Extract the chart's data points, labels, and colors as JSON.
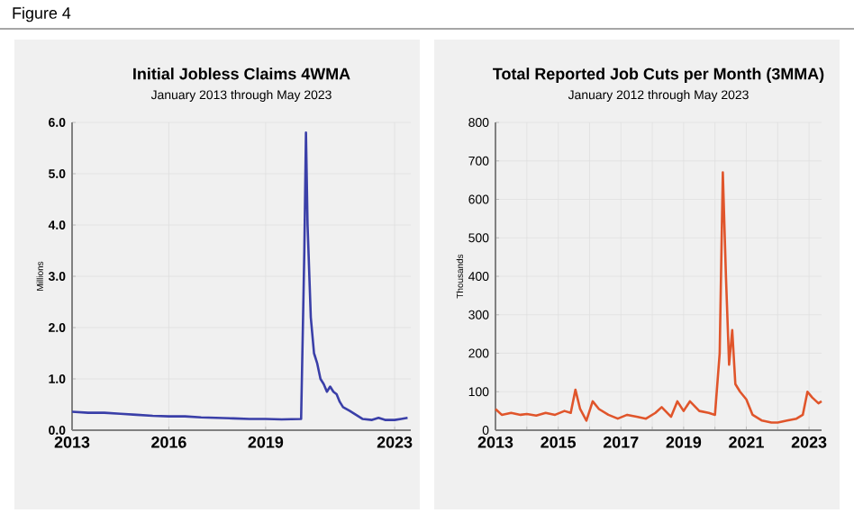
{
  "chart_data": [
    {
      "type": "line",
      "title": "Initial Jobless Claims 4WMA",
      "subtitle": "January 2013 through May 2023",
      "ylabel": "Millions",
      "annotations": [
        "Figure 4"
      ],
      "x": [
        2013.0,
        2013.5,
        2014.0,
        2014.5,
        2015.0,
        2015.5,
        2016.0,
        2016.5,
        2017.0,
        2017.5,
        2018.0,
        2018.5,
        2019.0,
        2019.5,
        2020.1,
        2020.2,
        2020.25,
        2020.3,
        2020.4,
        2020.5,
        2020.6,
        2020.7,
        2020.8,
        2020.9,
        2021.0,
        2021.1,
        2021.2,
        2021.3,
        2021.4,
        2021.6,
        2021.8,
        2022.0,
        2022.3,
        2022.5,
        2022.7,
        2023.0,
        2023.2,
        2023.4
      ],
      "series": [
        {
          "color": "#3a3fa8",
          "values": [
            0.36,
            0.34,
            0.34,
            0.32,
            0.3,
            0.28,
            0.27,
            0.27,
            0.25,
            0.24,
            0.23,
            0.22,
            0.22,
            0.21,
            0.22,
            3.5,
            5.8,
            4.0,
            2.2,
            1.5,
            1.3,
            1.0,
            0.9,
            0.75,
            0.85,
            0.75,
            0.7,
            0.55,
            0.45,
            0.38,
            0.3,
            0.22,
            0.2,
            0.24,
            0.2,
            0.2,
            0.22,
            0.24
          ]
        }
      ],
      "xlim": [
        2013,
        2023.5
      ],
      "xticks": [
        2013,
        2016,
        2019,
        2023
      ],
      "ylim": [
        0,
        6
      ],
      "yticks": [
        {
          "value": 0,
          "label": "0.0"
        },
        {
          "value": 1,
          "label": "1.0"
        },
        {
          "value": 2,
          "label": "2.0"
        },
        {
          "value": 3,
          "label": "3.0"
        },
        {
          "value": 4,
          "label": "4.0"
        },
        {
          "value": 5,
          "label": "5.0"
        },
        {
          "value": 6,
          "label": "6.0"
        }
      ],
      "grid": true
    },
    {
      "type": "line",
      "title": "Total Reported Job Cuts per Month (3MMA)",
      "subtitle": "January 2012 through May 2023",
      "ylabel": "Thousands",
      "x": [
        2013.0,
        2013.2,
        2013.5,
        2013.8,
        2014.0,
        2014.3,
        2014.6,
        2014.9,
        2015.2,
        2015.4,
        2015.55,
        2015.7,
        2015.9,
        2016.1,
        2016.3,
        2016.6,
        2016.9,
        2017.2,
        2017.5,
        2017.8,
        2018.1,
        2018.3,
        2018.6,
        2018.8,
        2019.0,
        2019.2,
        2019.5,
        2019.8,
        2020.0,
        2020.15,
        2020.25,
        2020.35,
        2020.45,
        2020.55,
        2020.65,
        2020.8,
        2021.0,
        2021.2,
        2021.5,
        2021.8,
        2022.0,
        2022.3,
        2022.6,
        2022.8,
        2022.95,
        2023.1,
        2023.3,
        2023.4
      ],
      "series": [
        {
          "color": "#e0552b",
          "values": [
            55,
            40,
            45,
            40,
            42,
            38,
            45,
            40,
            50,
            45,
            105,
            55,
            25,
            75,
            55,
            40,
            30,
            40,
            35,
            30,
            45,
            60,
            35,
            75,
            50,
            75,
            50,
            45,
            40,
            200,
            670,
            400,
            170,
            260,
            120,
            100,
            80,
            40,
            25,
            20,
            20,
            25,
            30,
            40,
            100,
            85,
            70,
            75
          ]
        }
      ],
      "xlim": [
        2013,
        2023.4
      ],
      "xticks": [
        2013,
        {
          "value": 2014,
          "label": null
        },
        2015,
        {
          "value": 2016,
          "label": null
        },
        2017,
        {
          "value": 2018,
          "label": null
        },
        2019,
        {
          "value": 2020,
          "label": null
        },
        2021,
        {
          "value": 2022,
          "label": null
        },
        2023
      ],
      "ylim": [
        0,
        800
      ],
      "yticks": [
        0,
        100,
        200,
        300,
        400,
        500,
        600,
        700,
        800
      ],
      "grid": true
    }
  ]
}
